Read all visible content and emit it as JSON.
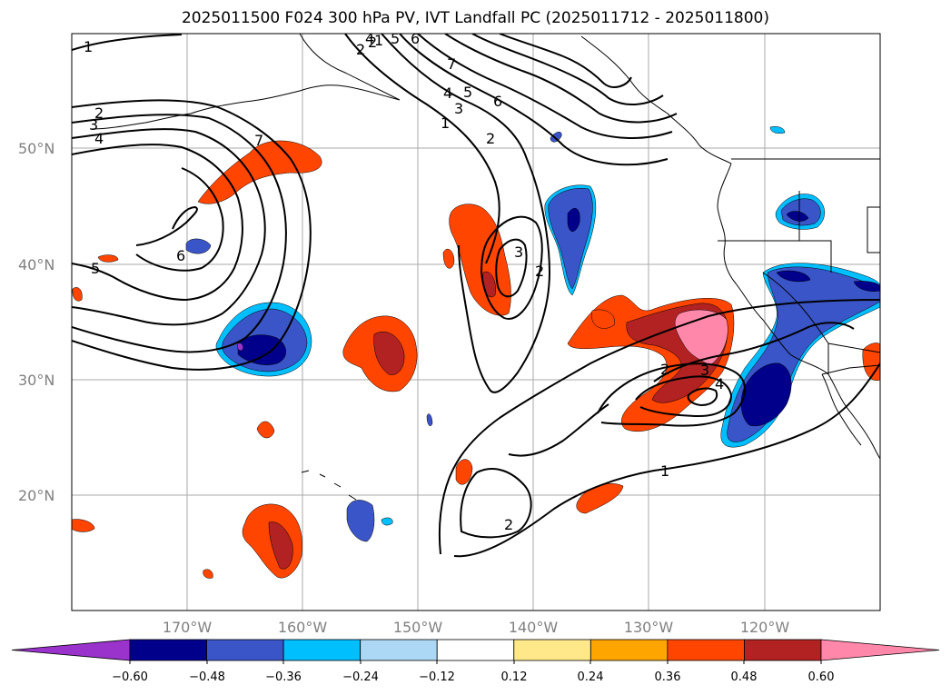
{
  "title": "2025011500 F024 300 hPa PV, IVT Landfall PC (2025011712 - 2025011800)",
  "latitude_labels": [
    "50°N",
    "40°N",
    "30°N",
    "20°N"
  ],
  "longitude_labels": [
    "170°W",
    "160°W",
    "150°W",
    "140°W",
    "130°W",
    "120°W"
  ],
  "colorbar": {
    "tick_labels": [
      "−0.60",
      "−0.48",
      "−0.36",
      "−0.24",
      "−0.12",
      "0.12",
      "0.24",
      "0.36",
      "0.48",
      "0.60"
    ],
    "colors": [
      "#9933cc",
      "#00008b",
      "#3a55c8",
      "#00bfff",
      "#add8f5",
      "#ffffff",
      "#ffe88a",
      "#ffa500",
      "#ff4500",
      "#b22222",
      "#ff88aa"
    ]
  },
  "contour_labels": [
    "1",
    "2",
    "3",
    "4",
    "5",
    "6",
    "7",
    "2",
    "3",
    "4",
    "5",
    "6",
    "1",
    "2",
    "4",
    "5",
    "6",
    "7",
    "1",
    "2",
    "3",
    "2",
    "2",
    "3",
    "4",
    "1",
    "2"
  ],
  "colors": {
    "positive_light": "#ffe88a",
    "positive_mid": "#ff4500",
    "positive_dark": "#b22222",
    "positive_max": "#ff88aa",
    "negative_light": "#00bfff",
    "negative_mid": "#3a55c8",
    "negative_dark": "#00008b",
    "negative_max": "#9933cc"
  }
}
